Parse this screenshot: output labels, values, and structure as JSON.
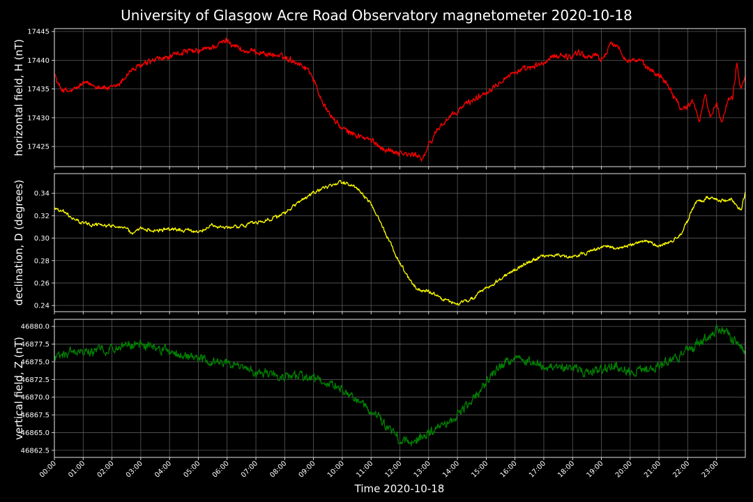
{
  "title": "University of Glasgow Acre Road Observatory magnetometer 2020-10-18",
  "xlabel": "Time 2020-10-18",
  "x_tick_labels": [
    "00:00",
    "01:00",
    "02:00",
    "03:00",
    "04:00",
    "05:00",
    "06:00",
    "07:00",
    "08:00",
    "09:00",
    "10:00",
    "11:00",
    "12:00",
    "13:00",
    "14:00",
    "15:00",
    "16:00",
    "17:00",
    "18:00",
    "19:00",
    "20:00",
    "21:00",
    "22:00",
    "23:00"
  ],
  "theme": {
    "background": "#000000",
    "grid": "#5a5a5a",
    "spine": "#ffffff",
    "text": "#ffffff"
  },
  "chart_data": [
    {
      "type": "line",
      "ylabel": "horizontal field, H (nT)",
      "color": "#ff0000",
      "xlim": [
        0,
        24
      ],
      "ylim": [
        17421.5,
        17445.5
      ],
      "yticks": [
        17425,
        17430,
        17435,
        17440,
        17445
      ],
      "ytick_labels": [
        "17425",
        "17430",
        "17435",
        "17440",
        "17445"
      ],
      "grid": true,
      "noise": 0.4,
      "x": [
        0,
        0.1,
        0.25,
        0.5,
        0.75,
        1.0,
        1.5,
        2.0,
        2.3,
        2.6,
        3.0,
        3.5,
        4.0,
        4.5,
        5.0,
        5.3,
        5.6,
        6.0,
        6.3,
        6.6,
        7.0,
        7.5,
        8.0,
        8.5,
        8.9,
        9.2,
        9.5,
        10.0,
        10.5,
        11.0,
        11.5,
        12.0,
        12.3,
        12.6,
        12.8,
        13.0,
        13.3,
        13.6,
        14.0,
        14.3,
        14.7,
        15.0,
        15.5,
        16.0,
        16.5,
        17.0,
        17.3,
        17.6,
        17.9,
        18.2,
        18.5,
        18.8,
        19.0,
        19.3,
        19.5,
        19.8,
        20.0,
        20.3,
        20.5,
        20.8,
        21.0,
        21.3,
        21.5,
        21.8,
        22.0,
        22.2,
        22.4,
        22.6,
        22.8,
        23.0,
        23.2,
        23.4,
        23.55,
        23.7,
        23.85,
        24.0
      ],
      "y": [
        17438,
        17436,
        17435,
        17434.5,
        17435,
        17436,
        17435.5,
        17435,
        17436,
        17438,
        17439,
        17440,
        17440.5,
        17441.5,
        17441.5,
        17442,
        17442.5,
        17443.5,
        17442.5,
        17441.5,
        17441.5,
        17441,
        17440.5,
        17439.5,
        17438,
        17434,
        17431,
        17428,
        17427,
        17426,
        17424.5,
        17424,
        17423.5,
        17423.5,
        17423,
        17425,
        17428,
        17429.5,
        17431,
        17432.5,
        17433.5,
        17434.5,
        17436.5,
        17438,
        17438.5,
        17439.5,
        17440.5,
        17441,
        17440.5,
        17441.5,
        17440.5,
        17441,
        17440,
        17442.5,
        17443,
        17440.5,
        17440,
        17440,
        17439,
        17438,
        17437.5,
        17436,
        17434,
        17431.5,
        17432,
        17433,
        17429.5,
        17434,
        17430,
        17433,
        17429,
        17433,
        17433,
        17439.5,
        17435,
        17437.5
      ]
    },
    {
      "type": "line",
      "ylabel": "declination, D (degrees)",
      "color": "#ffff00",
      "xlim": [
        0,
        24
      ],
      "ylim": [
        0.2345,
        0.3575
      ],
      "yticks": [
        0.24,
        0.26,
        0.28,
        0.3,
        0.32,
        0.34
      ],
      "ytick_labels": [
        "0.24",
        "0.26",
        "0.28",
        "0.30",
        "0.32",
        "0.34"
      ],
      "grid": true,
      "noise": 0.0012,
      "x": [
        0,
        0.3,
        0.6,
        1.0,
        1.5,
        2.0,
        2.5,
        2.7,
        3.0,
        3.5,
        4.0,
        4.5,
        5.0,
        5.2,
        5.5,
        6.0,
        6.5,
        7.0,
        7.5,
        8.0,
        8.5,
        9.0,
        9.5,
        10.0,
        10.2,
        10.5,
        11.0,
        11.5,
        12.0,
        12.3,
        12.6,
        13.0,
        13.5,
        14.0,
        14.5,
        15.0,
        15.5,
        16.0,
        16.5,
        17.0,
        17.5,
        18.0,
        18.5,
        19.0,
        19.3,
        19.5,
        20.0,
        20.5,
        21.0,
        21.3,
        21.5,
        21.8,
        22.0,
        22.3,
        22.5,
        22.7,
        23.0,
        23.3,
        23.5,
        23.7,
        23.85,
        24.0
      ],
      "y": [
        0.327,
        0.324,
        0.318,
        0.313,
        0.312,
        0.311,
        0.31,
        0.303,
        0.308,
        0.307,
        0.308,
        0.307,
        0.306,
        0.308,
        0.311,
        0.309,
        0.311,
        0.314,
        0.317,
        0.322,
        0.332,
        0.34,
        0.346,
        0.35,
        0.349,
        0.345,
        0.33,
        0.305,
        0.278,
        0.265,
        0.254,
        0.253,
        0.245,
        0.241,
        0.246,
        0.255,
        0.264,
        0.272,
        0.279,
        0.284,
        0.285,
        0.283,
        0.287,
        0.292,
        0.293,
        0.29,
        0.294,
        0.297,
        0.293,
        0.296,
        0.298,
        0.305,
        0.316,
        0.333,
        0.333,
        0.336,
        0.335,
        0.333,
        0.335,
        0.329,
        0.324,
        0.341
      ]
    },
    {
      "type": "line",
      "ylabel": "vertical field, Z (nT)",
      "color": "#008000",
      "xlim": [
        0,
        24
      ],
      "ylim": [
        46861.5,
        46881.0
      ],
      "yticks": [
        46862.5,
        46865.0,
        46867.5,
        46870.0,
        46872.5,
        46875.0,
        46877.5,
        46880.0
      ],
      "ytick_labels": [
        "46862.5",
        "46865.0",
        "46867.5",
        "46870.0",
        "46872.5",
        "46875.0",
        "46877.5",
        "46880.0"
      ],
      "grid": true,
      "noise": 0.5,
      "x": [
        0,
        0.3,
        0.6,
        1.0,
        1.5,
        2.0,
        2.5,
        3.0,
        3.5,
        4.0,
        4.5,
        5.0,
        5.5,
        6.0,
        6.5,
        7.0,
        7.5,
        8.0,
        8.5,
        9.0,
        9.5,
        10.0,
        10.5,
        11.0,
        11.5,
        12.0,
        12.3,
        12.6,
        13.0,
        13.5,
        14.0,
        14.5,
        15.0,
        15.5,
        16.0,
        16.5,
        17.0,
        17.5,
        18.0,
        18.5,
        19.0,
        19.5,
        20.0,
        20.5,
        21.0,
        21.3,
        21.5,
        21.8,
        22.0,
        22.2,
        22.5,
        22.7,
        23.0,
        23.3,
        23.5,
        23.7,
        23.85,
        24.0
      ],
      "y": [
        46875.5,
        46876,
        46876.5,
        46876.5,
        46876.5,
        46877,
        46877.2,
        46877.5,
        46877,
        46876.5,
        46876,
        46875.5,
        46875,
        46875,
        46874,
        46873.5,
        46873,
        46873,
        46873,
        46872.5,
        46872,
        46871,
        46869.5,
        46868,
        46866,
        46864,
        46863.5,
        46864,
        46865,
        46866,
        46867.5,
        46869.5,
        46872,
        46874.5,
        46875.5,
        46875,
        46874.5,
        46874,
        46874,
        46873.5,
        46874,
        46874.5,
        46873.5,
        46874,
        46874.5,
        46875,
        46875.5,
        46876,
        46877,
        46877,
        46878,
        46878.5,
        46879.5,
        46879,
        46878.5,
        46877.5,
        46877,
        46876
      ]
    }
  ]
}
